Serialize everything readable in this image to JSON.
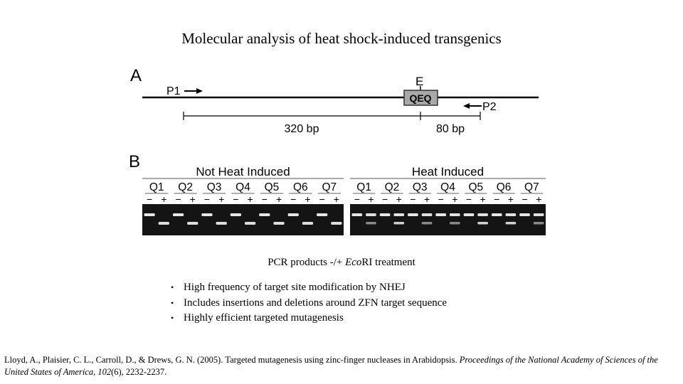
{
  "slide": {
    "title": "Molecular analysis of heat shock-induced transgenics"
  },
  "figure": {
    "panel_a": {
      "label": "A",
      "site_label": "E",
      "box_label": "QEQ",
      "primer_left": "P1",
      "primer_right": "P2",
      "distance_left": "320 bp",
      "distance_right": "80 bp"
    },
    "panel_b": {
      "label": "B",
      "groups": [
        {
          "title": "Not Heat Induced",
          "lanes": [
            "Q1",
            "Q2",
            "Q3",
            "Q4",
            "Q5",
            "Q6",
            "Q7"
          ],
          "treatments": [
            "−",
            "+"
          ]
        },
        {
          "title": "Heat Induced",
          "lanes": [
            "Q1",
            "Q2",
            "Q3",
            "Q4",
            "Q5",
            "Q6",
            "Q7"
          ],
          "treatments": [
            "−",
            "+"
          ]
        }
      ]
    }
  },
  "caption": {
    "prefix": "PCR products -/+ ",
    "italic": "Eco",
    "suffix": "RI treatment"
  },
  "bullets": [
    "High frequency of target site modification by NHEJ",
    "Includes insertions and deletions around ZFN target sequence",
    "Highly efficient targeted mutagenesis"
  ],
  "citation": {
    "text": "Lloyd, A., Plaisier, C. L., Carroll, D., & Drews, G. N. (2005). Targeted mutagenesis using zinc-finger nucleases in Arabidopsis. ",
    "journal": "Proceedings of the National Academy of Sciences of the United States of America",
    "sep": ", ",
    "volume": "102",
    "issue_pages": "(6), 2232-2237."
  }
}
